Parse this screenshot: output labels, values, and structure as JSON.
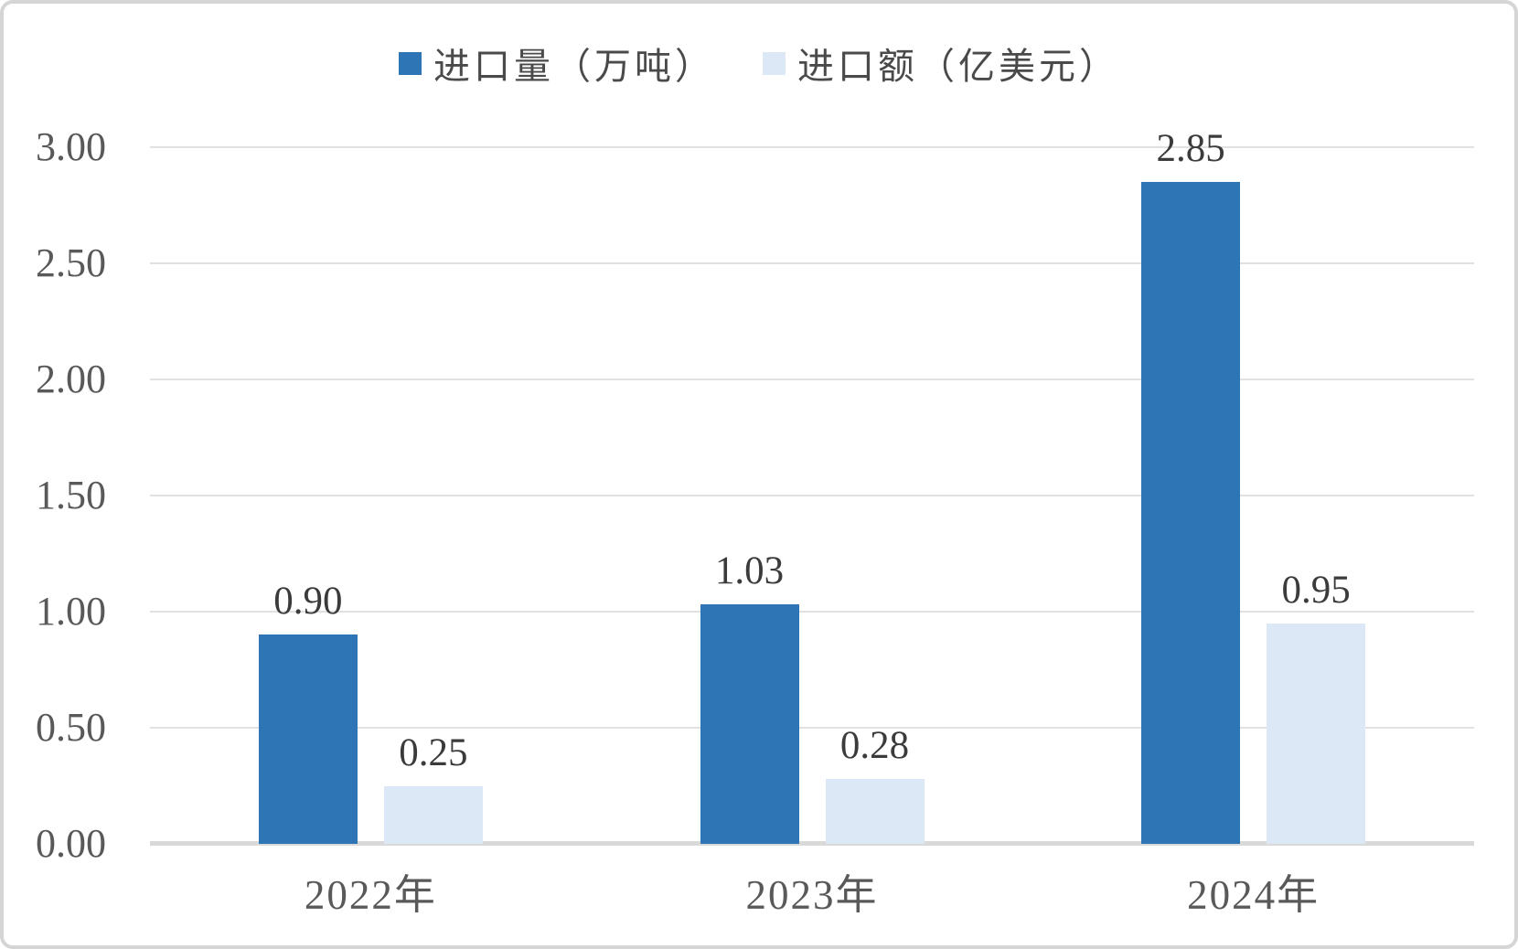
{
  "colors": {
    "series_import_volume": "#2E75B6",
    "series_import_value": "#DCE8F5",
    "gridline": "#E1E1E1",
    "axis_line": "#D9D9D9",
    "tick_text": "#595959",
    "data_label_text": "#3B3B3B",
    "legend_text": "#4A4A4A",
    "card_border": "#D5D5D5"
  },
  "chart_data": {
    "type": "bar",
    "title": "",
    "xlabel": "",
    "ylabel": "",
    "categories": [
      "2022年",
      "2023年",
      "2024年"
    ],
    "series": [
      {
        "name": "进口量（万吨）",
        "color": "#2E75B6",
        "values": [
          0.9,
          1.03,
          2.85
        ],
        "value_labels": [
          "0.90",
          "1.03",
          "2.85"
        ]
      },
      {
        "name": "进口额（亿美元）",
        "color": "#DCE8F5",
        "values": [
          0.25,
          0.28,
          0.95
        ],
        "value_labels": [
          "0.25",
          "0.28",
          "0.95"
        ]
      }
    ],
    "ylim": [
      0,
      3.0
    ],
    "ytick_step": 0.5,
    "yticks": [
      0.0,
      0.5,
      1.0,
      1.5,
      2.0,
      2.5,
      3.0
    ],
    "ytick_labels": [
      "0.00",
      "0.50",
      "1.00",
      "1.50",
      "2.00",
      "2.50",
      "3.00"
    ],
    "grid": true,
    "legend_position": "top"
  }
}
